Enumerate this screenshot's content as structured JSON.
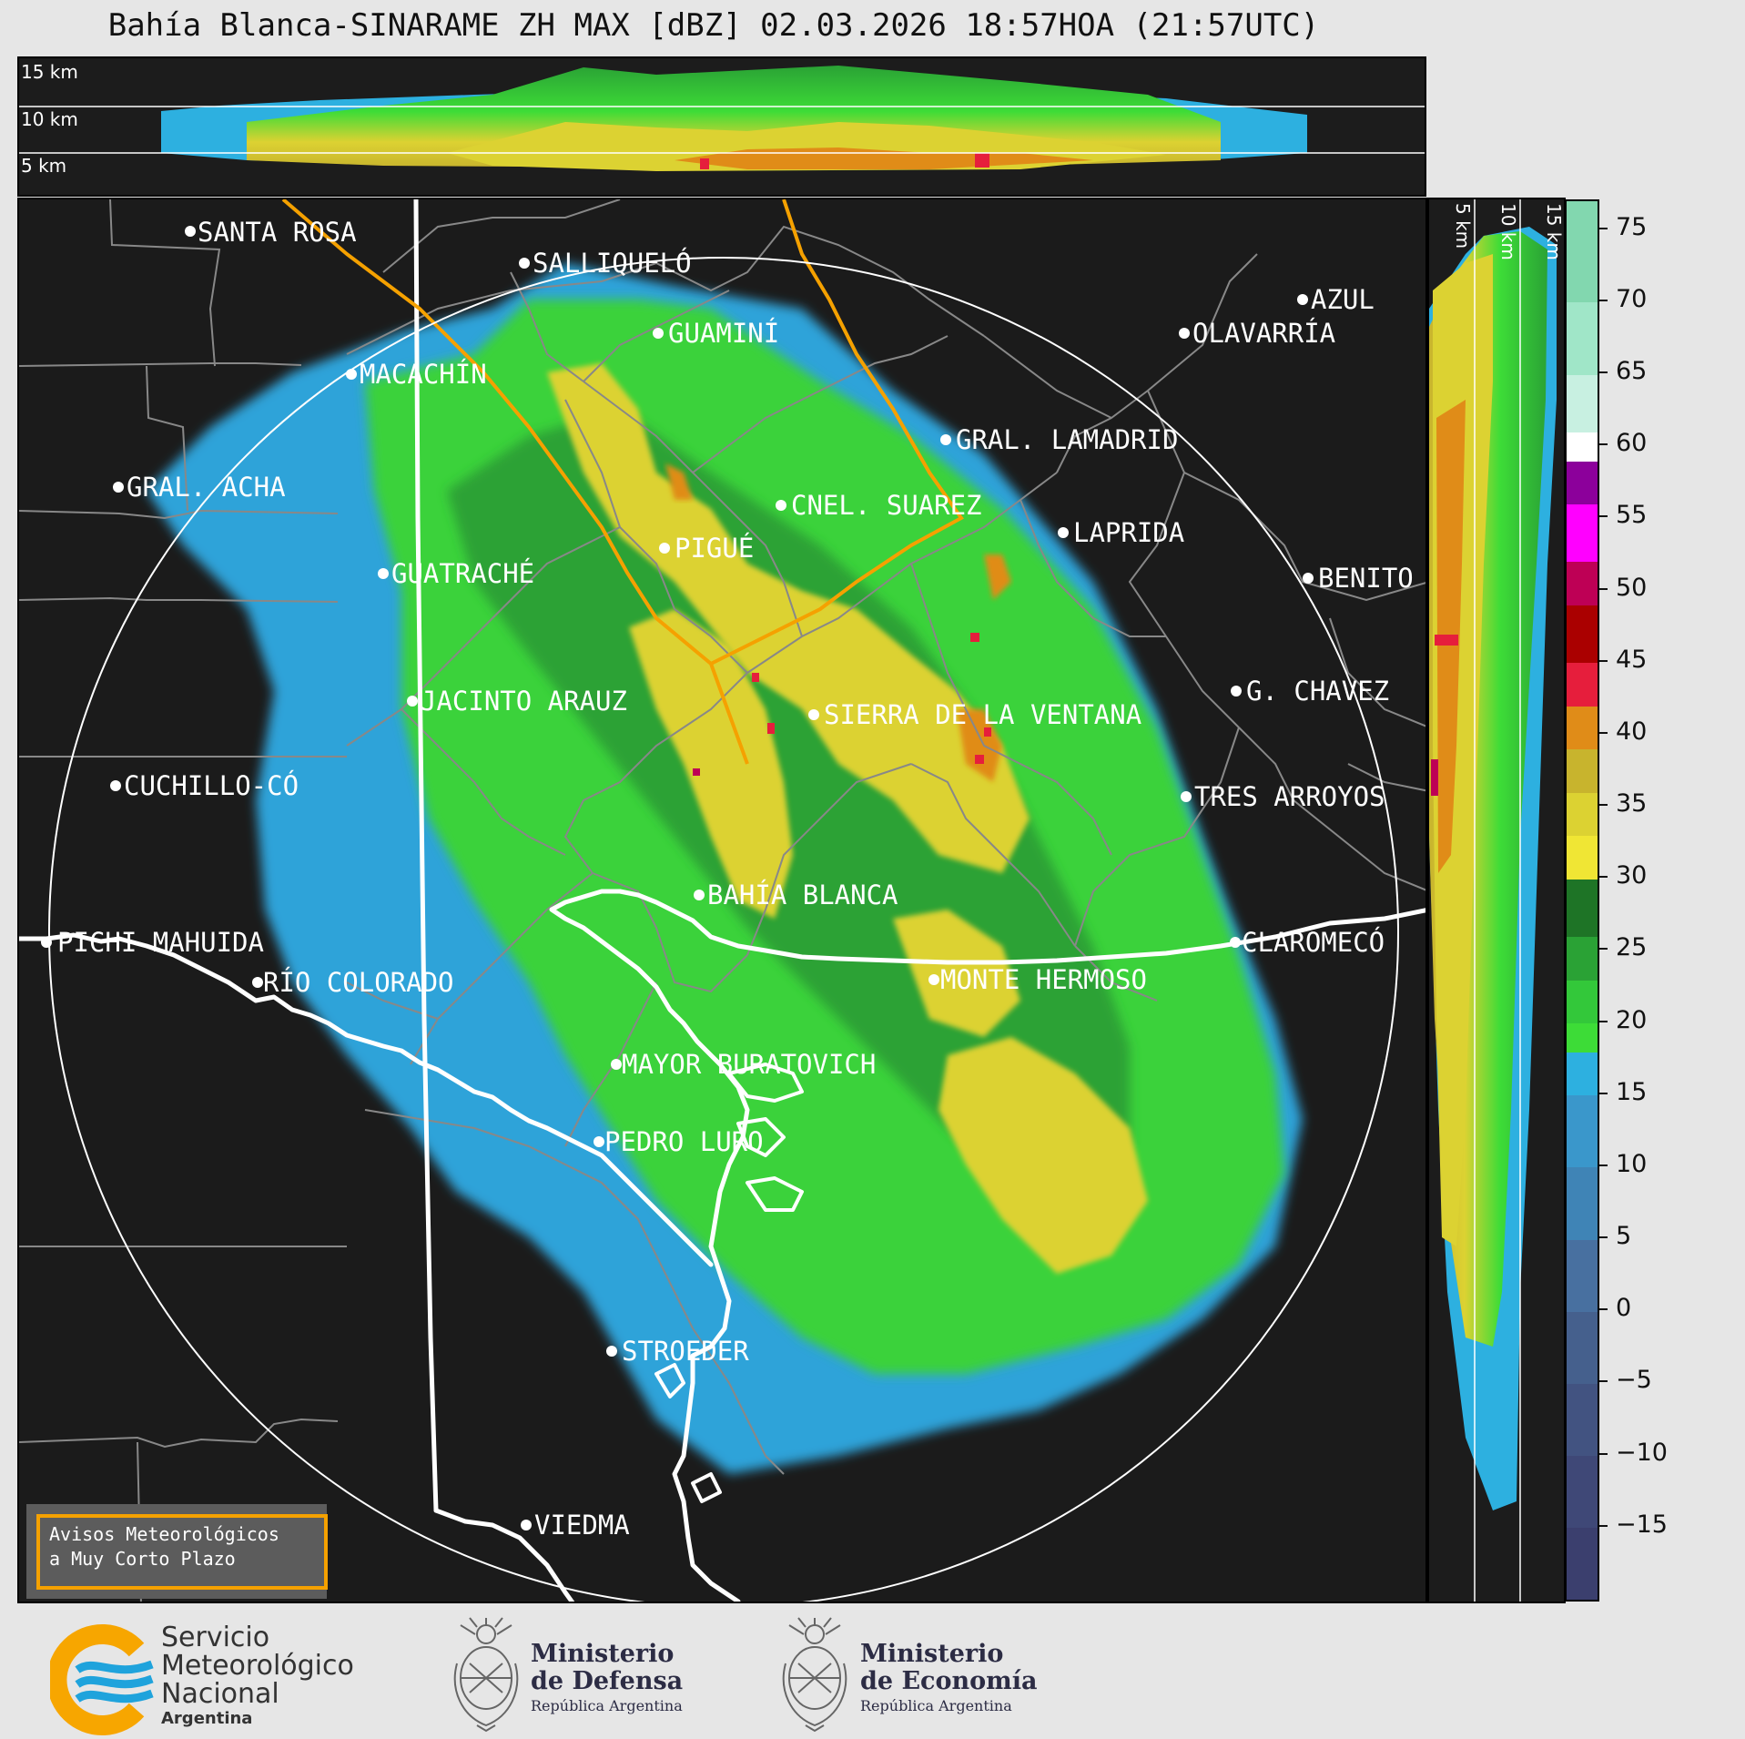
{
  "title": "Bahía Blanca-SINARAME ZH MAX [dBZ] 02.03.2026 18:57HOA (21:57UTC)",
  "cross_section_top": {
    "alt_labels": [
      "15 km",
      "10 km",
      "5 km"
    ]
  },
  "cross_section_side": {
    "alt_labels": [
      "5 km",
      "10 km",
      "15 km"
    ]
  },
  "colorbar": {
    "unit": "dBZ",
    "range": [
      -20,
      77
    ],
    "tick_labels": [
      "75",
      "70",
      "65",
      "60",
      "55",
      "50",
      "45",
      "40",
      "35",
      "30",
      "25",
      "20",
      "15",
      "10",
      "5",
      "0",
      "−5",
      "−10",
      "−15"
    ],
    "segments": [
      {
        "from": -20,
        "to": -15,
        "color": "#3b3f6e"
      },
      {
        "from": -15,
        "to": -10,
        "color": "#3f4877"
      },
      {
        "from": -10,
        "to": -5,
        "color": "#425381"
      },
      {
        "from": -5,
        "to": 0,
        "color": "#45608d"
      },
      {
        "from": 0,
        "to": 5,
        "color": "#4870a0"
      },
      {
        "from": 5,
        "to": 10,
        "color": "#3f84b6"
      },
      {
        "from": 10,
        "to": 15,
        "color": "#3a97cb"
      },
      {
        "from": 15,
        "to": 18,
        "color": "#2db0e0"
      },
      {
        "from": 18,
        "to": 20,
        "color": "#3ddc37"
      },
      {
        "from": 20,
        "to": 23,
        "color": "#33c83a"
      },
      {
        "from": 23,
        "to": 26,
        "color": "#2aa235"
      },
      {
        "from": 26,
        "to": 30,
        "color": "#1e7426"
      },
      {
        "from": 30,
        "to": 33,
        "color": "#f0e634"
      },
      {
        "from": 33,
        "to": 36,
        "color": "#dcd232"
      },
      {
        "from": 36,
        "to": 39,
        "color": "#c8b42d"
      },
      {
        "from": 39,
        "to": 42,
        "color": "#e08c18"
      },
      {
        "from": 42,
        "to": 45,
        "color": "#e61e3c"
      },
      {
        "from": 45,
        "to": 49,
        "color": "#aa0000"
      },
      {
        "from": 49,
        "to": 52,
        "color": "#be0055"
      },
      {
        "from": 52,
        "to": 56,
        "color": "#ff00ff"
      },
      {
        "from": 56,
        "to": 59,
        "color": "#8c009b"
      },
      {
        "from": 59,
        "to": 61,
        "color": "#ffffff"
      },
      {
        "from": 61,
        "to": 65,
        "color": "#c8f0e1"
      },
      {
        "from": 65,
        "to": 70,
        "color": "#a0e6c8"
      },
      {
        "from": 70,
        "to": 77,
        "color": "#82d7af"
      }
    ]
  },
  "cities": [
    {
      "name": "SANTA ROSA"
    },
    {
      "name": "SALLIQUELÓ"
    },
    {
      "name": "AZUL"
    },
    {
      "name": "OLAVARRÍA"
    },
    {
      "name": "GUAMINÍ"
    },
    {
      "name": "MACACHÍN"
    },
    {
      "name": "GRAL. LAMADRID"
    },
    {
      "name": "GRAL. ACHA"
    },
    {
      "name": "CNEL. SUAREZ"
    },
    {
      "name": "LAPRIDA"
    },
    {
      "name": "PIGUÉ"
    },
    {
      "name": "GUATRACHÉ"
    },
    {
      "name": "BENITO"
    },
    {
      "name": "G. CHAVEZ"
    },
    {
      "name": "JACINTO ARAUZ"
    },
    {
      "name": "SIERRA DE LA VENTANA"
    },
    {
      "name": "CUCHILLO-CÓ"
    },
    {
      "name": "TRES ARROYOS"
    },
    {
      "name": "BAHÍA BLANCA"
    },
    {
      "name": "PICHI MAHUIDA"
    },
    {
      "name": "CLAROMECÓ"
    },
    {
      "name": "MONTE HERMOSO"
    },
    {
      "name": "RÍO COLORADO"
    },
    {
      "name": "MAYOR BURATOVICH"
    },
    {
      "name": "PEDRO LURO"
    },
    {
      "name": "STROEDER"
    },
    {
      "name": "VIEDMA"
    }
  ],
  "warning_box": {
    "line1": "Avisos Meteorológicos",
    "line2": "a Muy Corto Plazo"
  },
  "logos": {
    "smn": {
      "line1": "Servicio",
      "line2": "Meteorológico",
      "line3": "Nacional",
      "line4": "Argentina",
      "brand_orange": "#f7a600",
      "brand_blue": "#1fa3dc"
    },
    "defensa": {
      "line1": "Ministerio",
      "line2": "de Defensa",
      "line3": "República Argentina"
    },
    "economia": {
      "line1": "Ministerio",
      "line2": "de Economía",
      "line3": "República Argentina"
    }
  }
}
